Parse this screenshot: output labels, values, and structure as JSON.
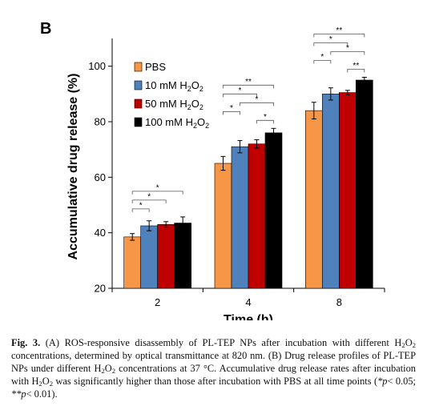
{
  "panel_label": "B",
  "chart_data": {
    "type": "bar",
    "title": "",
    "xlabel": "Time (h)",
    "ylabel": "Accumulative drug release (%)",
    "ylim": [
      20,
      110
    ],
    "yticks": [
      20,
      40,
      60,
      80,
      100
    ],
    "categories": [
      "2",
      "4",
      "8"
    ],
    "legend_position": "top-left",
    "grid": false,
    "series": [
      {
        "name": "PBS",
        "color": "#f79646",
        "values": [
          38.5,
          65,
          84
        ],
        "errors": [
          1.2,
          2.5,
          3
        ]
      },
      {
        "name": "10 mM H2O2",
        "color": "#4f81bd",
        "values": [
          42.5,
          71,
          90
        ],
        "errors": [
          1.8,
          2.2,
          2.2
        ]
      },
      {
        "name": "50 mM H2O2",
        "color": "#c00000",
        "values": [
          43,
          72,
          90.5
        ],
        "errors": [
          1,
          1.5,
          0.8
        ]
      },
      {
        "name": "100 mM H2O2",
        "color": "#000000",
        "values": [
          43.5,
          76,
          95
        ],
        "errors": [
          2.2,
          1.6,
          1
        ]
      }
    ],
    "significance": [
      {
        "group": "2",
        "pairs": [
          [
            0,
            1,
            "*"
          ],
          [
            0,
            2,
            "*"
          ],
          [
            0,
            3,
            "*"
          ]
        ]
      },
      {
        "group": "4",
        "pairs": [
          [
            0,
            1,
            "*"
          ],
          [
            0,
            2,
            "*"
          ],
          [
            0,
            3,
            "**"
          ],
          [
            1,
            3,
            "*"
          ],
          [
            2,
            3,
            "*"
          ]
        ]
      },
      {
        "group": "8",
        "pairs": [
          [
            0,
            1,
            "*"
          ],
          [
            0,
            2,
            "*"
          ],
          [
            0,
            3,
            "**"
          ],
          [
            1,
            3,
            "*"
          ],
          [
            2,
            3,
            "**"
          ]
        ]
      }
    ]
  },
  "caption": {
    "label": "Fig. 3.",
    "text_1": " (A) ROS-responsive disassembly of PL-TEP NPs after incubation with different H",
    "text_2": "O",
    "text_3": " concentrations, determined by optical transmittance at 820 nm. (B) Drug release profiles of PL-TEP NPs under different H",
    "text_4": "O",
    "text_5": " concentrations at 37 °C. Accumulative drug release rates after incubation with H",
    "text_6": "O",
    "text_7": " was significantly higher than those after incubation with PBS at all time points (",
    "text_8": "*p",
    "text_9": "< 0.05; ",
    "text_10": "**p",
    "text_11": "< 0.01)."
  }
}
